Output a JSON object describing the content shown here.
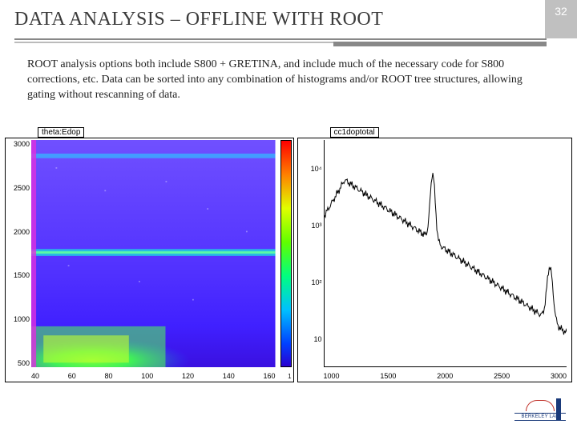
{
  "page_number": "32",
  "title": "DATA ANALYSIS – OFFLINE WITH ROOT",
  "body": "ROOT analysis options both include S800 + GRETINA, and include much of the necessary code for S800 corrections, etc.  Data can be sorted into any combination of histograms and/or ROOT tree structures, allowing gating without rescanning of data.",
  "chart_2d": {
    "label": "theta:Edop",
    "y_ticks": [
      "3000",
      "2500",
      "2000",
      "1500",
      "1000",
      "500"
    ],
    "x_ticks": [
      "40",
      "60",
      "80",
      "100",
      "120",
      "140",
      "160"
    ],
    "colorbar_min": "1",
    "xlim": [
      30,
      170
    ],
    "ylim": [
      200,
      3200
    ],
    "bg_color": "#ffffff",
    "colors": {
      "low": "#2a00d0",
      "mid1": "#0040ff",
      "mid2": "#00c0ff",
      "mid3": "#00ff80",
      "mid4": "#60ff00",
      "mid5": "#e0ff00",
      "high1": "#ff8000",
      "high2": "#ff0000"
    }
  },
  "chart_1d": {
    "label": "cc1doptotal",
    "y_ticks_log": [
      "10⁴",
      "10³",
      "10²",
      "10"
    ],
    "x_ticks": [
      "1000",
      "1500",
      "2000",
      "2500",
      "3000"
    ],
    "xlim": [
      700,
      3100
    ],
    "line_color": "#000000",
    "line_width": 1,
    "peaks": [
      {
        "x": 1770,
        "y_log": 3.7
      },
      {
        "x": 2930,
        "y_log": 2.3
      }
    ],
    "baseline_log": 1.3,
    "rise_start_x": 800,
    "rise_start_log": 3.6
  },
  "logo": {
    "text": "BERKELEY LAB"
  }
}
